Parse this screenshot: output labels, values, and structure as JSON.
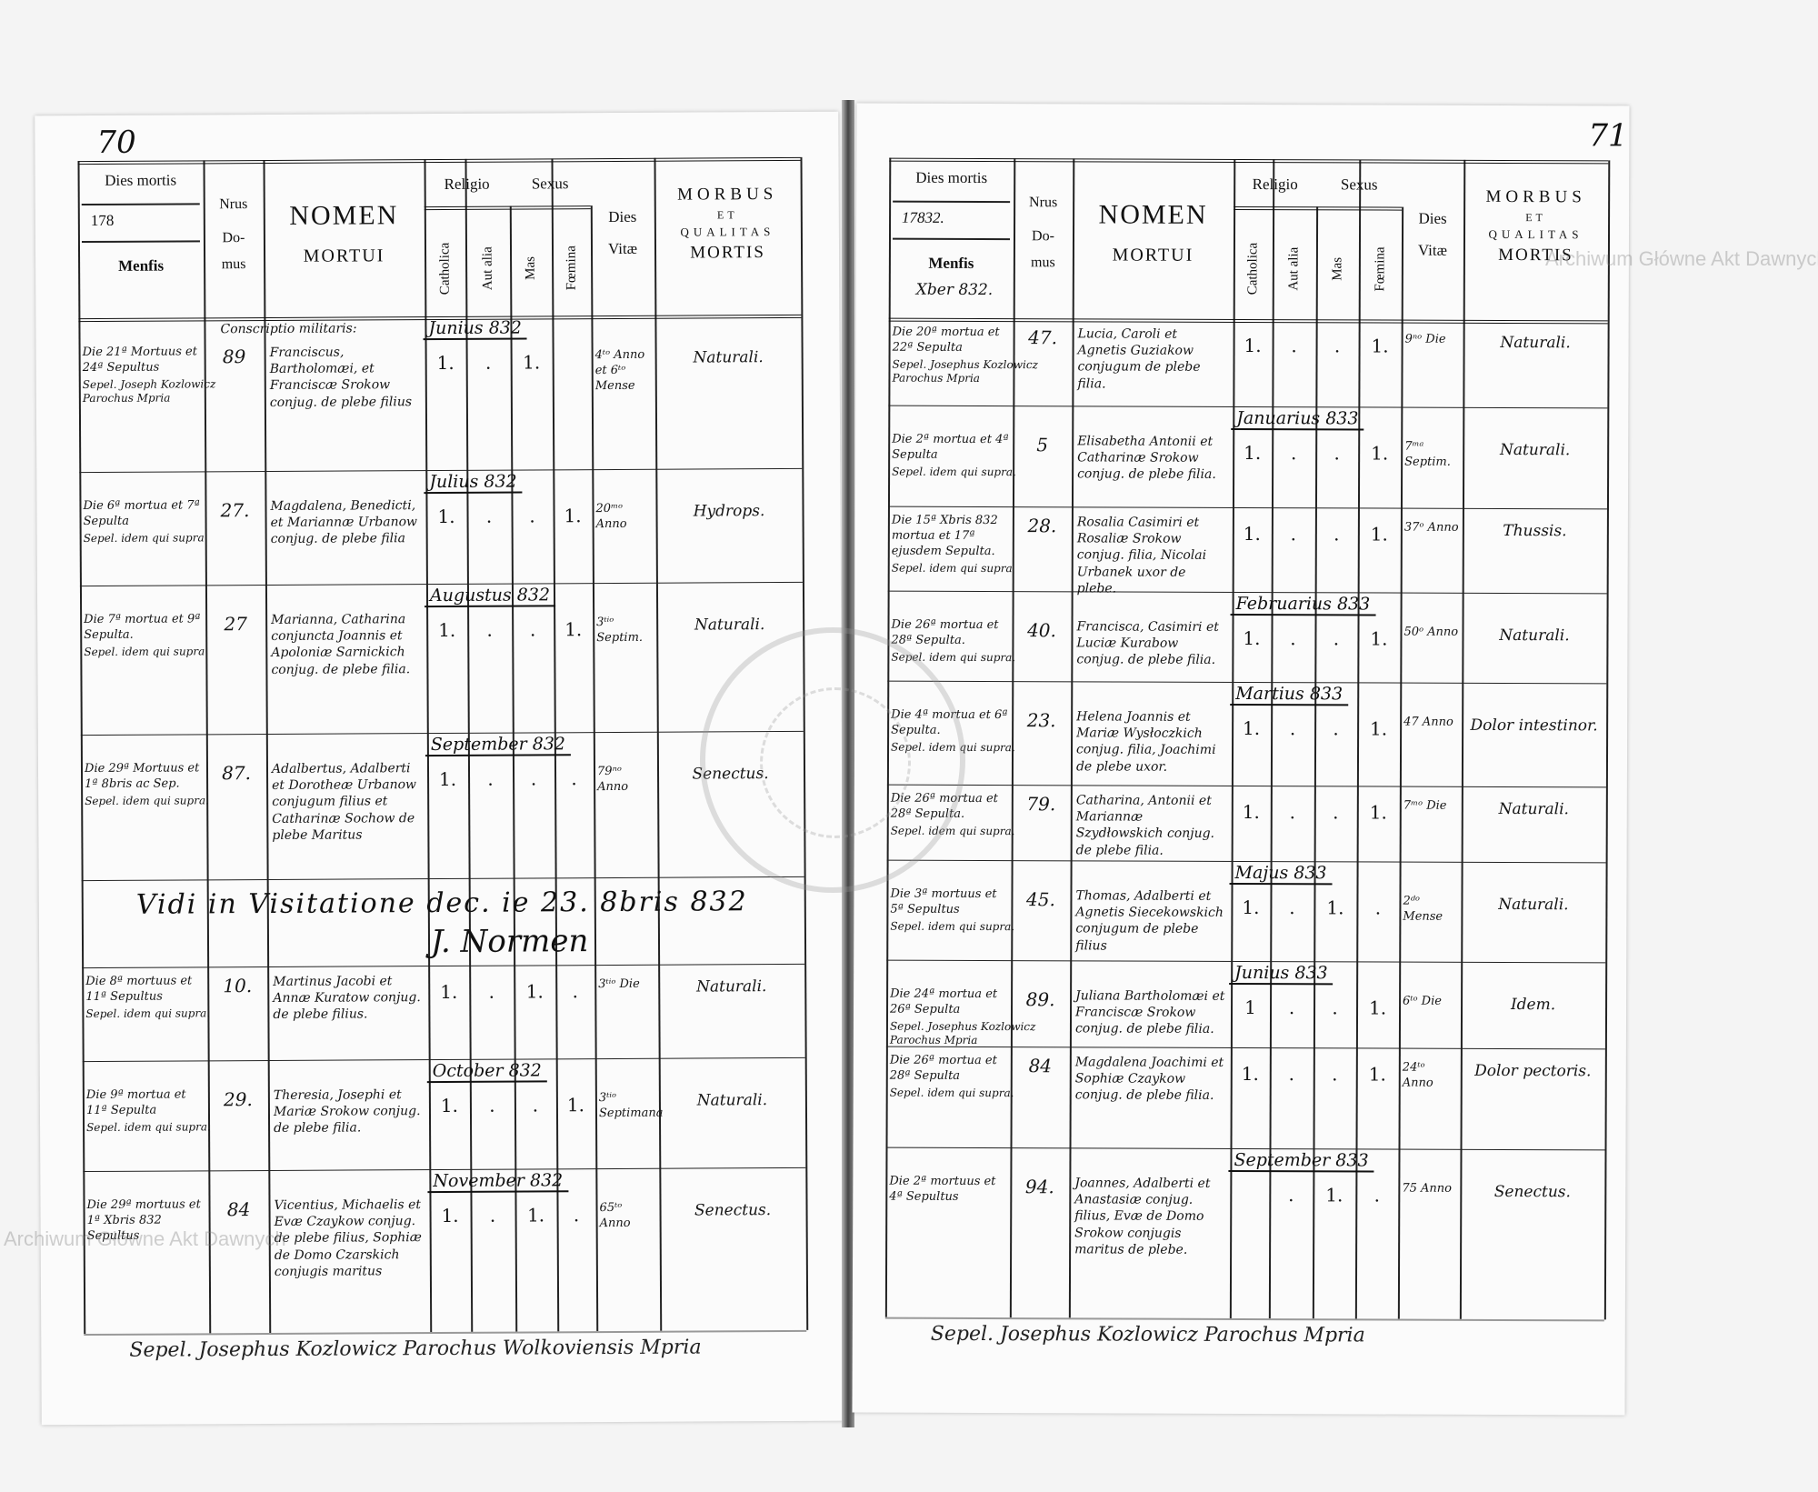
{
  "left_page": {
    "page_number": "70",
    "header": {
      "dies_mortis": "Dies mortis",
      "year": "178",
      "mensis": "Menfis",
      "nrus": "Nrus",
      "domus": "Do-mus",
      "nomen": "NOMEN",
      "mortui": "MORTUI",
      "religio": "Religio",
      "sexus": "Sexus",
      "catholica": "Catholica",
      "aut_alia": "Aut alia",
      "mas": "Mas",
      "foemina": "Fœmina",
      "dies": "Dies",
      "vitae": "Vitæ",
      "morbus": "MORBUS",
      "et": "ET",
      "qualitas": "QUALITAS",
      "mortis": "MORTIS"
    },
    "pre_note": "Conscriptio militaris:",
    "rows": [
      {
        "dies": "Die 21ª Mortuus et 24ª Sepultus",
        "sepel": "Sepel. Joseph Kozlowicz Parochus Mpria",
        "domus": "89",
        "month": "Junius 832",
        "nomen": "Franciscus, Bartholomæi, et Franciscæ Srokow conjug. de plebe filius",
        "catholica": "1.",
        "aut_alia": ".",
        "mas": "1.",
        "foemina": "",
        "vitae": "4ᵗᵒ Anno et 6ᵗᵒ Mense",
        "morbus": "Naturali."
      },
      {
        "dies": "Die 6ª mortua et 7ª Sepulta",
        "sepel": "Sepel. idem qui supra",
        "domus": "27.",
        "month": "Julius 832",
        "nomen": "Magdalena, Benedicti, et Mariannæ Urbanow conjug. de plebe filia",
        "catholica": "1.",
        "aut_alia": ".",
        "mas": ".",
        "foemina": "1.",
        "vitae": "20ᵐᵒ Anno",
        "morbus": "Hydrops."
      },
      {
        "dies": "Die 7ª mortua et 9ª Sepulta.",
        "sepel": "Sepel. idem qui supra",
        "domus": "27",
        "month": "Augustus 832",
        "nomen": "Marianna, Catharina conjuncta Joannis et Apoloniæ Sarnickich conjug. de plebe filia.",
        "catholica": "1.",
        "aut_alia": ".",
        "mas": ".",
        "foemina": "1.",
        "vitae": "3ᵗⁱᵒ Septim.",
        "morbus": "Naturali."
      },
      {
        "dies": "Die 29ª Mortuus et 1ª 8bris ac Sep.",
        "sepel": "Sepel. idem qui supra.",
        "domus": "87.",
        "month": "September 832",
        "nomen": "Adalbertus, Adalberti et Dorotheæ Urbanow conjugum filius et Catharinæ Sochow de plebe Maritus",
        "catholica": "1.",
        "aut_alia": ".",
        "mas": ".",
        "foemina": ".",
        "vitae": "79ⁿᵒ Anno",
        "morbus": "Senectus."
      },
      {
        "dies": "Die 8ª mortuus et 11ª Sepultus",
        "sepel": "Sepel. idem qui supra.",
        "domus": "10.",
        "month": "",
        "nomen": "Martinus Jacobi et Annæ Kuratow conjug. de plebe filius.",
        "catholica": "1.",
        "aut_alia": ".",
        "mas": "1.",
        "foemina": ".",
        "vitae": "3ᵗⁱᵒ Die",
        "morbus": "Naturali."
      },
      {
        "dies": "Die 9ª mortua et 11ª Sepulta",
        "sepel": "Sepel. idem qui supra.",
        "domus": "29.",
        "month": "October 832",
        "nomen": "Theresia, Josephi et Mariæ Srokow conjug. de plebe filia.",
        "catholica": "1.",
        "aut_alia": ".",
        "mas": ".",
        "foemina": "1.",
        "vitae": "3ᵗⁱᵒ Septimana",
        "morbus": "Naturali."
      },
      {
        "dies": "Die 29ª mortuus et 1ª Xbris 832 Sepultus",
        "sepel": "",
        "domus": "84",
        "month": "November 832",
        "nomen": "Vicentius, Michaelis et Evæ Czaykow conjug. de plebe filius, Sophiæ de Domo Czarskich conjugis maritus",
        "catholica": "1.",
        "aut_alia": ".",
        "mas": "1.",
        "foemina": ".",
        "vitae": "65ᵗᵒ Anno",
        "morbus": "Senectus."
      }
    ],
    "visitation_note": "Vidi in Visitatione dec. ie 23. 8bris 832",
    "visitation_signature": "J. Normen",
    "footer": "Sepel. Josephus Kozlowicz Parochus Wolkoviensis Mpria"
  },
  "right_page": {
    "page_number": "71",
    "header": {
      "dies_mortis": "Dies mortis",
      "year": "17832.",
      "mensis": "Menfis",
      "mensis_value": "Xber 832.",
      "nrus": "Nrus",
      "domus": "Do-mus",
      "nomen": "NOMEN",
      "mortui": "MORTUI",
      "religio": "Religio",
      "sexus": "Sexus",
      "catholica": "Catholica",
      "aut_alia": "Aut alia",
      "mas": "Mas",
      "foemina": "Fœmina",
      "dies": "Dies",
      "vitae": "Vitæ",
      "morbus": "MORBUS",
      "et": "ET",
      "qualitas": "QUALITAS",
      "mortis": "MORTIS"
    },
    "rows": [
      {
        "dies": "Die 20ª mortua et 22ª Sepulta",
        "sepel": "Sepel. Josephus Kozlowicz Parochus Mpria",
        "domus": "47.",
        "month": "",
        "nomen": "Lucia, Caroli et Agnetis Guziakow conjugum de plebe filia.",
        "catholica": "1.",
        "aut_alia": ".",
        "mas": ".",
        "foemina": "1.",
        "vitae": "9ⁿᵒ Die",
        "morbus": "Naturali."
      },
      {
        "dies": "Die 2ª mortua et 4ª Sepulta",
        "sepel": "Sepel. idem qui supra.",
        "domus": "5",
        "month": "Januarius 833",
        "nomen": "Elisabetha Antonii et Catharinæ Srokow conjug. de plebe filia.",
        "catholica": "1.",
        "aut_alia": ".",
        "mas": ".",
        "foemina": "1.",
        "vitae": "7ᵐᵃ Septim.",
        "morbus": "Naturali."
      },
      {
        "dies": "Die 15ª Xbris 832 mortua et 17ª ejusdem Sepulta.",
        "sepel": "Sepel. idem qui supra",
        "domus": "28.",
        "month": "",
        "nomen": "Rosalia Casimiri et Rosaliæ Srokow conjug. filia, Nicolai Urbanek uxor de plebe.",
        "catholica": "1.",
        "aut_alia": ".",
        "mas": ".",
        "foemina": "1.",
        "vitae": "37ᵒ Anno",
        "morbus": "Thussis."
      },
      {
        "dies": "Die 26ª mortua et 28ª Sepulta.",
        "sepel": "Sepel. idem qui supra.",
        "domus": "40.",
        "month": "Februarius 833",
        "nomen": "Francisca, Casimiri et Luciæ Kurabow conjug. de plebe filia.",
        "catholica": "1.",
        "aut_alia": ".",
        "mas": ".",
        "foemina": "1.",
        "vitae": "50ᵒ Anno",
        "morbus": "Naturali."
      },
      {
        "dies": "Die 4ª mortua et 6ª Sepulta.",
        "sepel": "Sepel. idem qui supra.",
        "domus": "23.",
        "month": "Martius 833",
        "nomen": "Helena Joannis et Mariæ Wysłoczkich conjug. filia, Joachimi de plebe uxor.",
        "catholica": "1.",
        "aut_alia": ".",
        "mas": ".",
        "foemina": "1.",
        "vitae": "47 Anno",
        "morbus": "Dolor intestinor."
      },
      {
        "dies": "Die 26ª mortua et 28ª Sepulta.",
        "sepel": "Sepel. idem qui supra.",
        "domus": "79.",
        "month": "",
        "nomen": "Catharina, Antonii et Mariannæ Szydłowskich conjug. de plebe filia.",
        "catholica": "1.",
        "aut_alia": ".",
        "mas": ".",
        "foemina": "1.",
        "vitae": "7ᵐᵒ Die",
        "morbus": "Naturali."
      },
      {
        "dies": "Die 3ª mortuus et 5ª Sepultus",
        "sepel": "Sepel. idem qui supra.",
        "domus": "45.",
        "month": "Majus 833",
        "nomen": "Thomas, Adalberti et Agnetis Siecekowskich conjugum de plebe filius",
        "catholica": "1.",
        "aut_alia": ".",
        "mas": "1.",
        "foemina": ".",
        "vitae": "2ᵈᵒ Mense",
        "morbus": "Naturali."
      },
      {
        "dies": "Die 24ª mortua et 26ª Sepulta",
        "sepel": "Sepel. Josephus Kozlowicz Parochus Mpria",
        "domus": "89.",
        "month": "Junius 833",
        "nomen": "Juliana Bartholomæi et Franciscæ Srokow conjug. de plebe filia.",
        "catholica": "1",
        "aut_alia": ".",
        "mas": ".",
        "foemina": "1.",
        "vitae": "6ᵗᵒ Die",
        "morbus": "Idem."
      },
      {
        "dies": "Die 26ª mortua et 28ª Sepulta",
        "sepel": "Sepel. idem qui supra.",
        "domus": "84",
        "month": "",
        "nomen": "Magdalena Joachimi et Sophiæ Czaykow conjug. de plebe filia.",
        "catholica": "1.",
        "aut_alia": ".",
        "mas": ".",
        "foemina": "1.",
        "vitae": "24ᵗᵒ Anno",
        "morbus": "Dolor pectoris."
      },
      {
        "dies": "Die 2ª mortuus et 4ª Sepultus",
        "sepel": "",
        "domus": "94.",
        "month": "September 833",
        "nomen": "Joannes, Adalberti et Anastasiæ conjug. filius, Evæ de Domo Srokow conjugis maritus de plebe.",
        "catholica": "",
        "aut_alia": ".",
        "mas": "1.",
        "foemina": ".",
        "vitae": "75 Anno",
        "morbus": "Senectus."
      }
    ],
    "footer": "Sepel. Josephus Kozlowicz Parochus Mpria"
  },
  "watermark": "Archiwum Główne Akt Dawnych",
  "stamp_text": "ARCHIWUM GŁÓWNE AKT DAWNYCH"
}
